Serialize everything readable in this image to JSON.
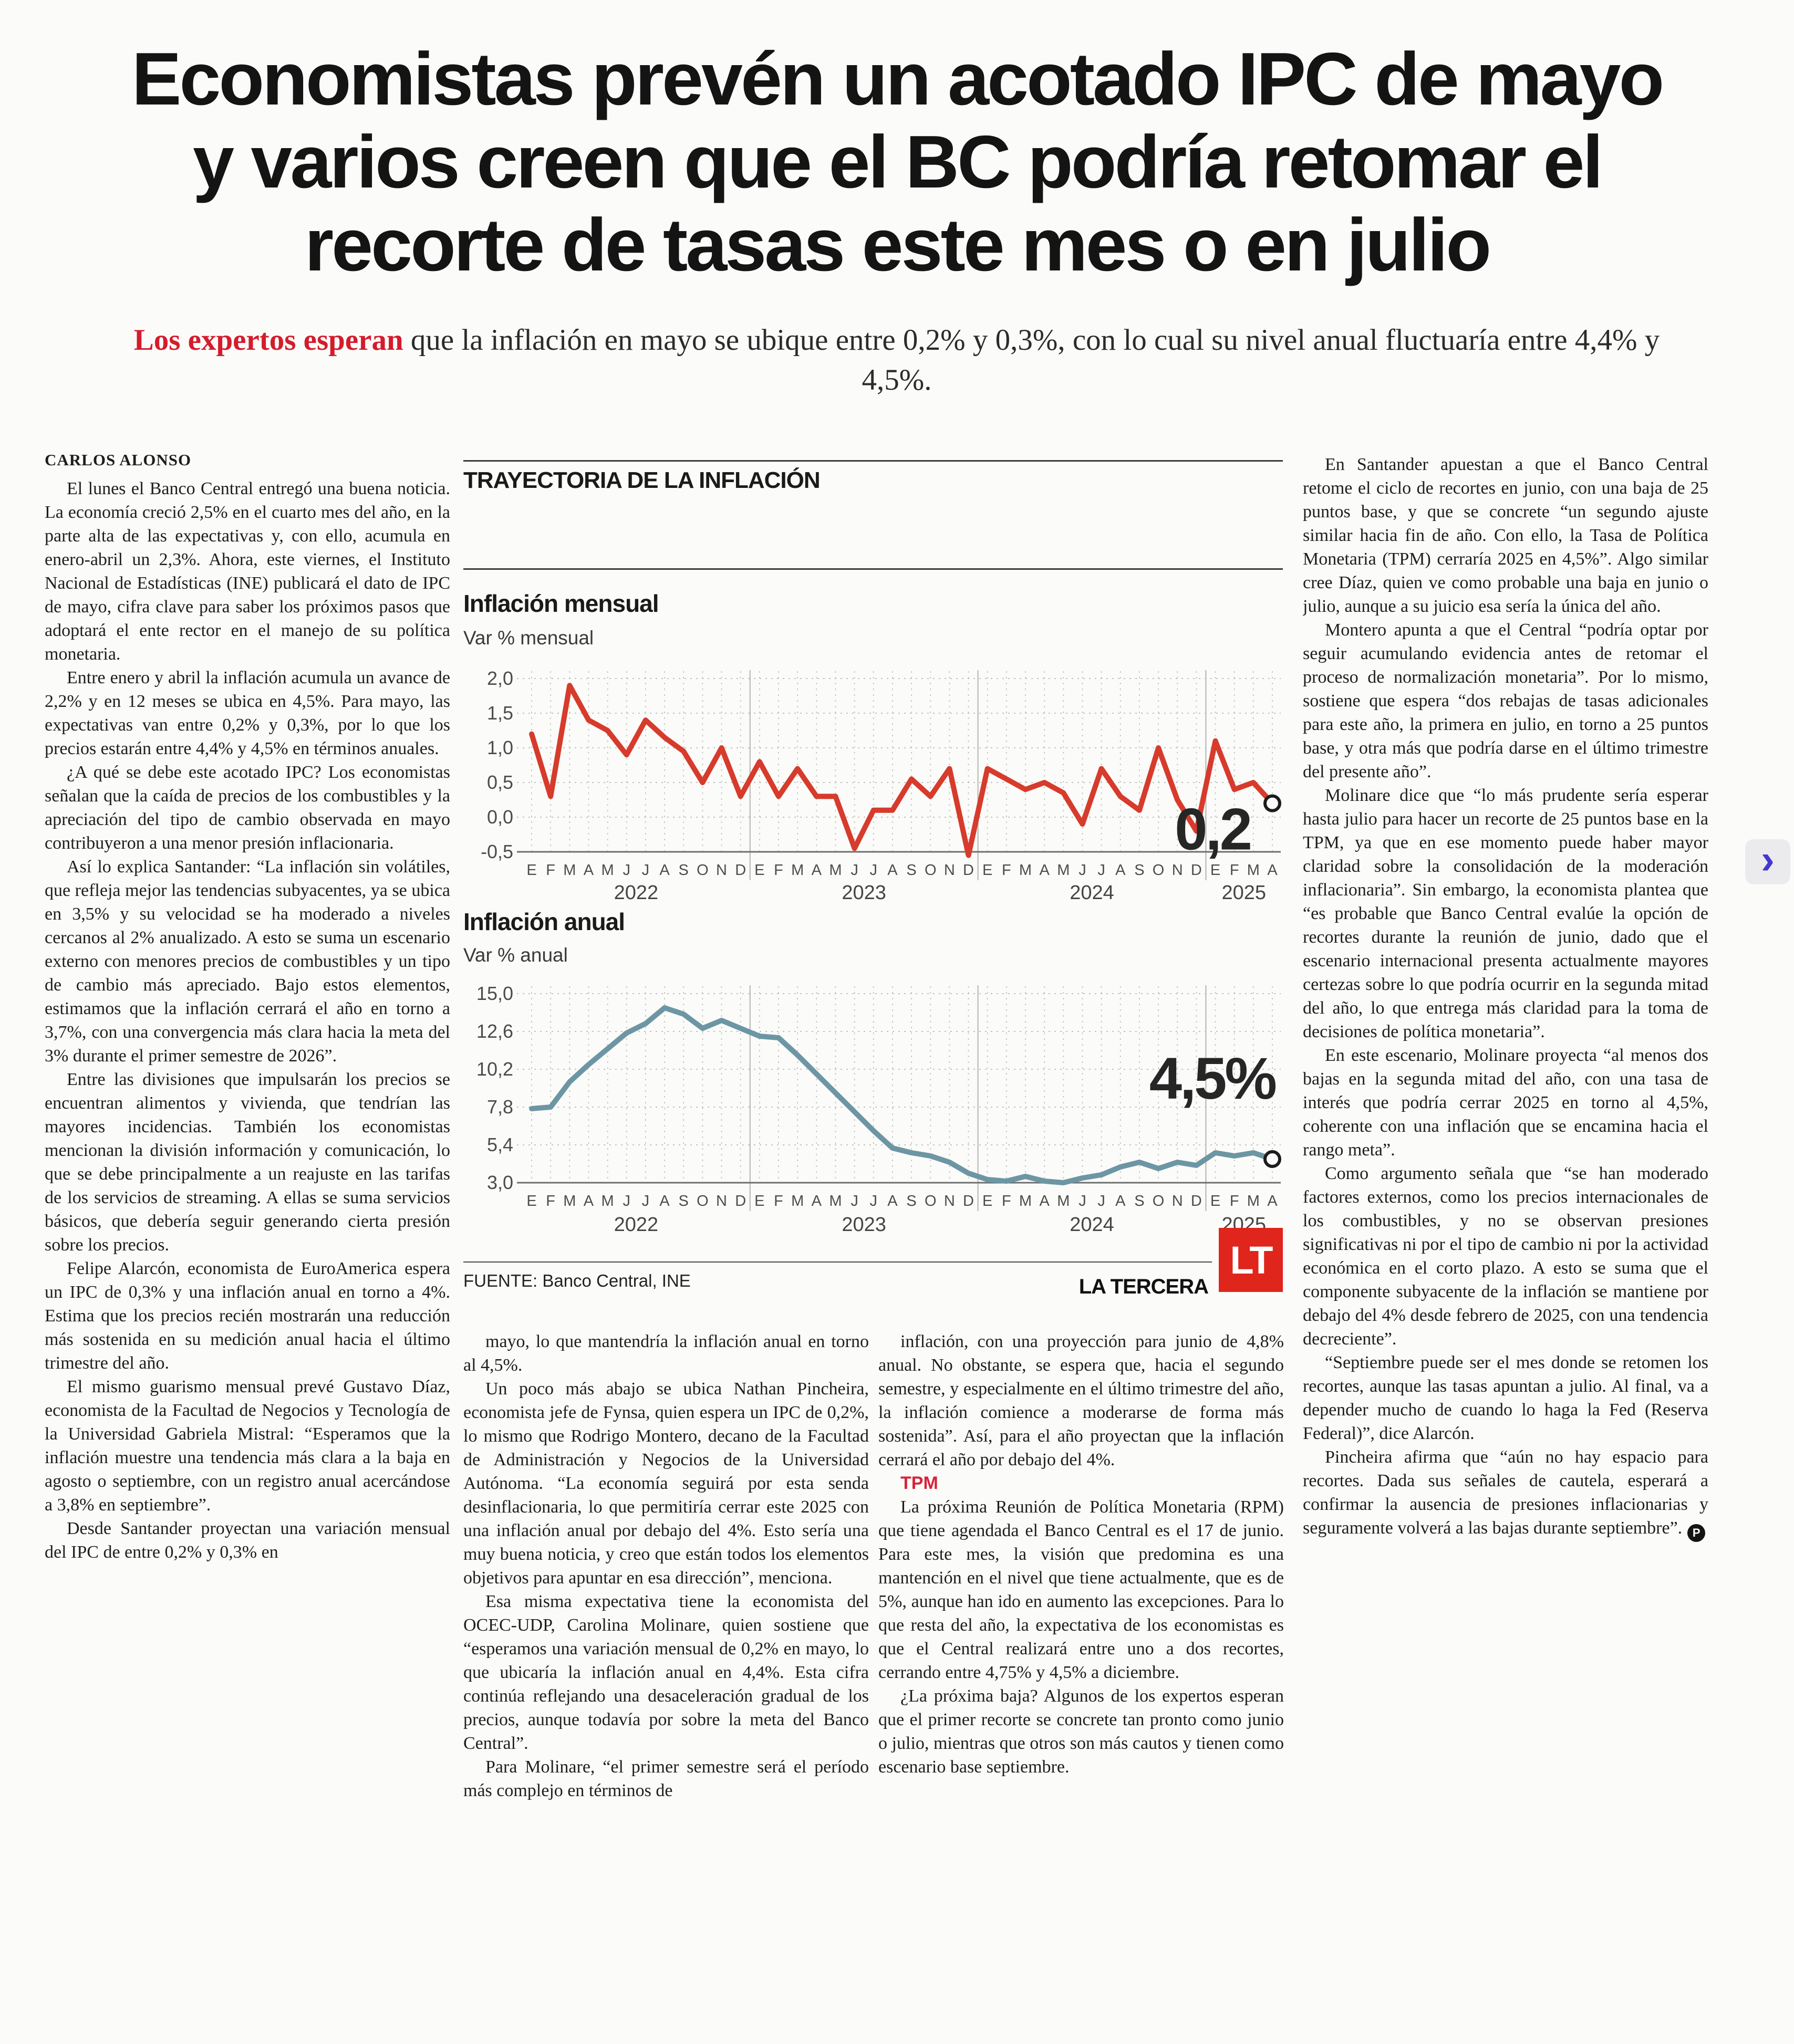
{
  "headline_lines": [
    "Economistas prevén un acotado IPC de mayo",
    "y varios creen que el BC podría retomar el",
    "recorte de tasas este mes o en julio"
  ],
  "subheadline": {
    "lead": "Los expertos esperan",
    "rest": " que la inflación en mayo se ubique entre 0,2% y 0,3%, con lo cual su nivel anual fluctuaría entre 4,4% y 4,5%."
  },
  "byline": "CARLOS ALONSO",
  "body": {
    "col1": [
      "El lunes el Banco Central entregó una buena noticia. La economía creció 2,5% en el cuarto mes del año, en la parte alta de las expectativas y, con ello, acumula en enero-abril un 2,3%. Ahora, este viernes, el Instituto Nacional de Estadísticas (INE) publicará el dato de IPC de mayo, cifra clave para saber los próximos pasos que adoptará el ente rector en el manejo de su política monetaria.",
      "Entre enero y abril la inflación acumula un avance de 2,2% y en 12 meses se ubica en 4,5%. Para mayo, las expectativas van entre 0,2% y 0,3%, por lo que los precios estarán entre 4,4% y 4,5% en términos anuales.",
      "¿A qué se debe este acotado IPC? Los economistas señalan que la caída de precios de los combustibles y la apreciación del tipo de cambio observada en mayo contribuyeron a una menor presión inflacionaria.",
      "Así lo explica Santander: “La inflación sin volátiles, que refleja mejor las tendencias subyacentes, ya se ubica en 3,5% y su velocidad se ha moderado a niveles cercanos al 2% anualizado. A esto se suma un escenario externo con menores precios de combustibles y un tipo de cambio más apreciado. Bajo estos elementos, estimamos que la inflación cerrará el año en torno a 3,7%, con una convergencia más clara hacia la meta del 3% durante el primer semestre de 2026”.",
      "Entre las divisiones que impulsarán los precios se encuentran alimentos y vivienda, que tendrían las mayores incidencias. También los economistas mencionan la división información y comunicación, lo que se debe principalmente a un reajuste en las tarifas de los servicios de streaming. A ellas se suma servicios básicos, que debería seguir generando cierta presión sobre los precios.",
      "Felipe Alarcón, economista de EuroAmerica espera un IPC de 0,3% y una inflación anual en torno a 4%. Estima que los precios recién mostrarán una reducción más sostenida en su medición anual hacia el último trimestre del año.",
      "El mismo guarismo mensual prevé Gustavo Díaz, economista de la Facultad de Negocios y Tecnología de la Universidad Gabriela Mistral: “Esperamos que la inflación muestre una tendencia más clara a la baja en agosto o septiembre, con un registro anual acercándose a 3,8% en septiembre”.",
      "Desde Santander proyectan una variación mensual del IPC de entre 0,2% y 0,3% en"
    ],
    "col2": [
      "mayo, lo que mantendría la inflación anual en torno al 4,5%.",
      "Un poco más abajo se ubica Nathan Pincheira, economista jefe de Fynsa, quien espera un IPC de 0,2%, lo mismo que Rodrigo Montero, decano de la Facultad de Administración y Negocios de la Universidad Autónoma. “La economía seguirá por esta senda desinflacionaria, lo que permitiría cerrar este 2025 con una inflación anual por debajo del 4%. Esto sería una muy buena noticia, y creo que están todos los elementos objetivos para apuntar en esa dirección”, menciona.",
      "Esa misma expectativa tiene la economista del OCEC-UDP, Carolina Molinare, quien sostiene que “esperamos una variación mensual de 0,2% en mayo, lo que ubicaría la inflación anual en 4,4%. Esta cifra continúa reflejando una desaceleración gradual de los precios, aunque todavía por sobre la meta del Banco Central”.",
      "Para Molinare, “el primer semestre será el período más complejo en términos de"
    ],
    "col3_p0": "inflación, con una proyección para junio de 4,8% anual. No obstante, se espera que, hacia el segundo semestre, y especialmente en el último trimestre del año, la inflación comience a moderarse de forma más sostenida”. Así, para el año proyectan que la inflación cerrará el año por debajo del 4%.",
    "col3_subhead": "TPM",
    "col3": [
      "La próxima Reunión de Política Monetaria (RPM) que tiene agendada el Banco Central es el 17 de junio. Para este mes, la visión que predomina es una mantención en el nivel que tiene actualmente, que es de 5%, aunque han ido en aumento las excepciones. Para lo que resta del año, la expectativa de los economistas es que el Central realizará entre uno a dos recortes, cerrando entre 4,75% y 4,5% a diciembre.",
      "¿La próxima baja? Algunos de los expertos esperan que el primer recorte se concrete tan pronto como junio o julio, mientras que otros son más cautos y tienen como escenario base septiembre."
    ],
    "col4": [
      "En Santander apuestan a que el Banco Central retome el ciclo de recortes en junio, con una baja de 25 puntos base, y que se concrete “un segundo ajuste similar hacia fin de año. Con ello, la Tasa de Política Monetaria (TPM) cerraría 2025 en 4,5%”. Algo similar cree Díaz, quien ve como probable una baja en junio o julio, aunque a su juicio esa sería la única del año.",
      "Montero apunta a que el Central “podría optar por seguir acumulando evidencia antes de retomar el proceso de normalización monetaria”. Por lo mismo, sostiene que espera “dos rebajas de tasas adicionales para este año, la primera en julio, en torno a 25 puntos base, y otra más que podría darse en el último trimestre del presente año”.",
      "Molinare dice que “lo más prudente sería esperar hasta julio para hacer un recorte de 25 puntos base en la TPM, ya que en ese momento puede haber mayor claridad sobre la consolidación de la moderación inflacionaria”. Sin embargo, la economista plantea que “es probable que Banco Central evalúe la opción de recortes durante la reunión de junio, dado que el escenario internacional presenta actualmente mayores certezas sobre lo que podría ocurrir en la segunda mitad del año, lo que entrega más claridad para la toma de decisiones de política monetaria”.",
      "En este escenario, Molinare proyecta “al menos dos bajas en la segunda mitad del año, con una tasa de interés que podría cerrar 2025 en torno al 4,5%, coherente con una inflación que se encamina hacia el rango meta”.",
      "Como argumento señala que “se han moderado factores externos, como los precios internacionales de los combustibles, y no se observan presiones significativas ni por el tipo de cambio ni por la actividad económica en el corto plazo. A esto se suma que el componente subyacente de la inflación se mantiene por debajo del 4% desde febrero de 2025, con una tendencia decreciente”.",
      "“Septiembre puede ser el mes donde se retomen los recortes, aunque las tasas apuntan a julio. Al final, va a depender mucho de cuando lo haga la Fed (Reserva Federal)”, dice Alarcón.",
      "Pincheira afirma que “aún no hay espacio para recortes. Dada sus señales de cautela, esperará a confirmar la ausencia de presiones inflacionarias y seguramente volverá a las bajas durante septiembre”."
    ],
    "endmark": "P"
  },
  "infographic": {
    "kicker": "TRAYECTORIA DE LA INFLACIÓN",
    "source": "FUENTE: Banco Central, INE",
    "credit": "LA TERCERA",
    "logo_text": "LT",
    "accent_red": "#d41c2c"
  },
  "nav": {
    "next_arrow": "›"
  },
  "chart_data": [
    {
      "type": "line",
      "title": "Inflación mensual",
      "note": "Var % mensual",
      "line_color": "#d63b2c",
      "end_label": "0,2",
      "ylim": [
        -0.5,
        2.0
      ],
      "yticks": [
        {
          "v": 2.0,
          "l": "2,0"
        },
        {
          "v": 1.5,
          "l": "1,5"
        },
        {
          "v": 1.0,
          "l": "1,0"
        },
        {
          "v": 0.5,
          "l": "0,5"
        },
        {
          "v": 0.0,
          "l": "0,0"
        },
        {
          "v": -0.5,
          "l": "-0,5"
        }
      ],
      "month_letters": [
        "E",
        "F",
        "M",
        "A",
        "M",
        "J",
        "J",
        "A",
        "S",
        "O",
        "N",
        "D"
      ],
      "years": [
        {
          "label": "2022",
          "months": 12
        },
        {
          "label": "2023",
          "months": 12
        },
        {
          "label": "2024",
          "months": 12
        },
        {
          "label": "2025",
          "months": 4
        }
      ],
      "values": [
        1.2,
        0.3,
        1.9,
        1.4,
        1.25,
        0.9,
        1.4,
        1.15,
        0.95,
        0.5,
        1.0,
        0.3,
        0.8,
        0.3,
        0.7,
        0.3,
        0.3,
        -0.45,
        0.1,
        0.1,
        0.55,
        0.3,
        0.7,
        -0.55,
        0.7,
        0.55,
        0.4,
        0.5,
        0.35,
        -0.1,
        0.7,
        0.3,
        0.1,
        1.0,
        0.25,
        -0.2,
        1.1,
        0.4,
        0.5,
        0.2
      ]
    },
    {
      "type": "line",
      "title": "Inflación anual",
      "note": "Var % anual",
      "line_color": "#6d96a4",
      "end_label": "4,5%",
      "ylim": [
        3.0,
        15.0
      ],
      "yticks": [
        {
          "v": 15.0,
          "l": "15,0"
        },
        {
          "v": 12.6,
          "l": "12,6"
        },
        {
          "v": 10.2,
          "l": "10,2"
        },
        {
          "v": 7.8,
          "l": "7,8"
        },
        {
          "v": 5.4,
          "l": "5,4"
        },
        {
          "v": 3.0,
          "l": "3,0"
        }
      ],
      "month_letters": [
        "E",
        "F",
        "M",
        "A",
        "M",
        "J",
        "J",
        "A",
        "S",
        "O",
        "N",
        "D"
      ],
      "years": [
        {
          "label": "2022",
          "months": 12
        },
        {
          "label": "2023",
          "months": 12
        },
        {
          "label": "2024",
          "months": 12
        },
        {
          "label": "2025",
          "months": 4
        }
      ],
      "values": [
        7.7,
        7.8,
        9.4,
        10.5,
        11.5,
        12.5,
        13.1,
        14.1,
        13.7,
        12.8,
        13.3,
        12.8,
        12.3,
        12.2,
        11.1,
        9.9,
        8.7,
        7.5,
        6.3,
        5.2,
        4.9,
        4.7,
        4.3,
        3.6,
        3.2,
        3.1,
        3.4,
        3.1,
        3.0,
        3.3,
        3.5,
        4.0,
        4.3,
        3.9,
        4.3,
        4.1,
        4.9,
        4.7,
        4.9,
        4.5
      ]
    }
  ]
}
